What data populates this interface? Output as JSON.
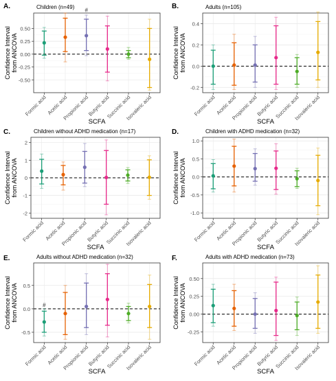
{
  "colors": {
    "Formic acid": "#1b9e77",
    "Acetic acid": "#e66101",
    "Propionic acid": "#7570b3",
    "Butyric acid": "#e7298a",
    "Succinic acid": "#4dac26",
    "Isovaleric acid": "#e6ab02"
  },
  "chart_data": [
    {
      "panel": "A.",
      "title": "Children (n=49)",
      "type": "scatter",
      "categories": [
        "Formic acid",
        "Acetic acid",
        "Propionic acid",
        "Butyric acid",
        "Succinic acid",
        "Isovaleric acid"
      ],
      "xlabel": "SCFA",
      "ylabel": [
        "Confidence Interval",
        "from ANCOVA"
      ],
      "ylim": [
        -0.75,
        0.8
      ],
      "yticks": [
        "0.50",
        "0.25",
        "0.00",
        "-0.25",
        "-0.50"
      ],
      "ytick_values": [
        0.5,
        0.25,
        0.0,
        -0.25,
        -0.5
      ],
      "estimate": [
        0.22,
        0.33,
        0.36,
        0.1,
        0.0,
        -0.1
      ],
      "ci_inner": [
        [
          -0.02,
          0.45
        ],
        [
          0.05,
          0.7
        ],
        [
          0.07,
          0.68
        ],
        [
          -0.35,
          0.55
        ],
        [
          -0.07,
          0.07
        ],
        [
          -0.65,
          0.5
        ]
      ],
      "ci_outer": [
        [
          -0.08,
          0.52
        ],
        [
          -0.15,
          0.8
        ],
        [
          -0.03,
          0.76
        ],
        [
          -0.52,
          0.74
        ],
        [
          -0.1,
          0.13
        ],
        [
          -0.7,
          0.68
        ]
      ],
      "annotations": [
        {
          "category": "Propionic acid",
          "text": "#",
          "y": 0.82
        }
      ]
    },
    {
      "panel": "B.",
      "title": "Adults (n=105)",
      "type": "scatter",
      "categories": [
        "Formic acid",
        "Acetic acid",
        "Propionic acid",
        "Butyric acid",
        "Succinic acid",
        "Isovaleric acid"
      ],
      "xlabel": "SCFA",
      "ylabel": [
        "Confidence Interval",
        "from ANCOVA"
      ],
      "ylim": [
        -0.25,
        0.5
      ],
      "yticks": [
        "0.4",
        "0.2",
        "0.0",
        "-0.2"
      ],
      "ytick_values": [
        0.4,
        0.2,
        0.0,
        -0.2
      ],
      "estimate": [
        0.0,
        0.01,
        0.01,
        0.08,
        -0.05,
        0.13
      ],
      "ci_inner": [
        [
          -0.17,
          0.15
        ],
        [
          -0.18,
          0.22
        ],
        [
          -0.15,
          0.2
        ],
        [
          -0.17,
          0.38
        ],
        [
          -0.17,
          0.08
        ],
        [
          -0.13,
          0.42
        ]
      ],
      "ci_outer": [
        [
          -0.22,
          0.2
        ],
        [
          -0.22,
          0.3
        ],
        [
          -0.2,
          0.28
        ],
        [
          -0.22,
          0.46
        ],
        [
          -0.2,
          0.11
        ],
        [
          -0.2,
          0.51
        ]
      ],
      "annotations": []
    },
    {
      "panel": "C.",
      "title": "Children without ADHD medication (n=17)",
      "type": "scatter",
      "categories": [
        "Formic acid",
        "Acetic acid",
        "Propionic acid",
        "Butyric acid",
        "Succinic acid",
        "Isovaleric acid"
      ],
      "xlabel": "SCFA",
      "ylabel": [
        "Confidence Interval",
        "from ANCOVA"
      ],
      "ylim": [
        -2.3,
        2.3
      ],
      "yticks": [
        "2",
        "1",
        "0",
        "-1",
        "-2"
      ],
      "ytick_values": [
        2,
        1,
        0,
        -1,
        -2
      ],
      "estimate": [
        0.38,
        0.18,
        0.6,
        0.02,
        0.15,
        0.03
      ],
      "ci_inner": [
        [
          -0.35,
          1.05
        ],
        [
          -0.4,
          0.7
        ],
        [
          -0.3,
          1.5
        ],
        [
          -1.5,
          1.55
        ],
        [
          -0.18,
          0.45
        ],
        [
          -1.0,
          1.02
        ]
      ],
      "ci_outer": [
        [
          -0.6,
          1.35
        ],
        [
          -0.7,
          0.9
        ],
        [
          -0.5,
          1.95
        ],
        [
          -2.1,
          2.15
        ],
        [
          -0.32,
          0.58
        ],
        [
          -1.22,
          1.25
        ]
      ],
      "annotations": []
    },
    {
      "panel": "D.",
      "title": "Children with ADHD medication (n=32)",
      "type": "scatter",
      "categories": [
        "Formic acid",
        "Acetic acid",
        "Propionic acid",
        "Butyric acid",
        "Succinic acid",
        "Isovaleric acid"
      ],
      "xlabel": "SCFA",
      "ylabel": [
        "Confidence Interval",
        "from ANCOVA"
      ],
      "ylim": [
        -1.15,
        1.1
      ],
      "yticks": [
        "1.0",
        "0.5",
        "0.0",
        "-0.5",
        "-1.0"
      ],
      "ytick_values": [
        1.0,
        0.5,
        0.0,
        -0.5,
        -1.0
      ],
      "estimate": [
        0.03,
        0.3,
        0.23,
        0.24,
        -0.05,
        -0.1
      ],
      "ci_inner": [
        [
          -0.33,
          0.37
        ],
        [
          -0.25,
          0.85
        ],
        [
          -0.12,
          0.65
        ],
        [
          -0.35,
          0.72
        ],
        [
          -0.27,
          0.17
        ],
        [
          -0.8,
          0.6
        ]
      ],
      "ci_outer": [
        [
          -0.42,
          0.48
        ],
        [
          -0.42,
          1.05
        ],
        [
          -0.23,
          0.78
        ],
        [
          -0.48,
          0.92
        ],
        [
          -0.32,
          0.24
        ],
        [
          -1.05,
          0.8
        ]
      ],
      "annotations": []
    },
    {
      "panel": "E.",
      "title": "Adults without ADHD medication (n=32)",
      "type": "scatter",
      "categories": [
        "Formic acid",
        "Acetic acid",
        "Propionic acid",
        "Butyric acid",
        "Succinic acid",
        "Isovaleric acid"
      ],
      "xlabel": "SCFA",
      "ylabel": [
        "Confidence Interval",
        "from ANCOVA"
      ],
      "ylim": [
        -0.72,
        0.98
      ],
      "yticks": [
        "0.5",
        "0.0",
        "-0.5"
      ],
      "ytick_values": [
        0.5,
        0.0,
        -0.5
      ],
      "estimate": [
        -0.28,
        -0.1,
        0.05,
        0.2,
        -0.1,
        0.05
      ],
      "ci_inner": [
        [
          -0.5,
          -0.05
        ],
        [
          -0.55,
          0.35
        ],
        [
          -0.4,
          0.55
        ],
        [
          -0.35,
          0.75
        ],
        [
          -0.25,
          0.05
        ],
        [
          -0.4,
          0.52
        ]
      ],
      "ci_outer": [
        [
          -0.58,
          0.0
        ],
        [
          -0.65,
          0.5
        ],
        [
          -0.55,
          0.75
        ],
        [
          -0.6,
          0.95
        ],
        [
          -0.3,
          0.12
        ],
        [
          -0.65,
          0.72
        ]
      ],
      "annotations": [
        {
          "category": "Formic acid",
          "text": "#",
          "y": 0.04
        }
      ]
    },
    {
      "panel": "F.",
      "title": "Adults with ADHD medication (n=73)",
      "type": "scatter",
      "categories": [
        "Formic acid",
        "Acetic acid",
        "Propionic acid",
        "Butyric acid",
        "Succinic acid",
        "Isovaleric acid"
      ],
      "xlabel": "SCFA",
      "ylabel": [
        "Confidence Interval",
        "from ANCOVA"
      ],
      "ylim": [
        -0.4,
        0.72
      ],
      "yticks": [
        "0.50",
        "0.25",
        "0.00",
        "-0.25"
      ],
      "ytick_values": [
        0.5,
        0.25,
        0.0,
        -0.25
      ],
      "estimate": [
        0.12,
        0.08,
        0.0,
        0.05,
        -0.02,
        0.17
      ],
      "ci_inner": [
        [
          -0.12,
          0.35
        ],
        [
          -0.17,
          0.33
        ],
        [
          -0.2,
          0.22
        ],
        [
          -0.3,
          0.45
        ],
        [
          -0.22,
          0.17
        ],
        [
          -0.2,
          0.55
        ]
      ],
      "ci_outer": [
        [
          -0.17,
          0.42
        ],
        [
          -0.23,
          0.42
        ],
        [
          -0.27,
          0.3
        ],
        [
          -0.37,
          0.52
        ],
        [
          -0.3,
          0.24
        ],
        [
          -0.27,
          0.68
        ]
      ],
      "annotations": []
    }
  ]
}
